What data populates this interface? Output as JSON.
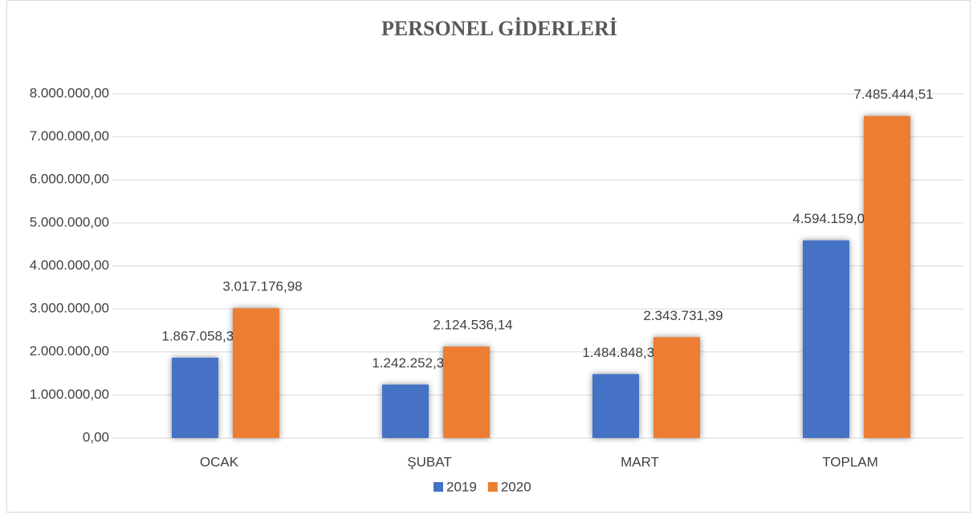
{
  "chart_data": {
    "type": "bar",
    "title": "PERSONEL GİDERLERİ",
    "categories": [
      "OCAK",
      "ŞUBAT",
      "MART",
      "TOPLAM"
    ],
    "series": [
      {
        "name": "2019",
        "color": "#4472c4",
        "values": [
          1867058.33,
          1242252.34,
          1484848.37,
          4594159.04
        ],
        "value_labels": [
          "1.867.058,33",
          "1.242.252,34",
          "1.484.848,37",
          "4.594.159,04"
        ]
      },
      {
        "name": "2020",
        "color": "#ed7d31",
        "values": [
          3017176.98,
          2124536.14,
          2343731.39,
          7485444.51
        ],
        "value_labels": [
          "3.017.176,98",
          "2.124.536,14",
          "2.343.731,39",
          "7.485.444,51"
        ]
      }
    ],
    "ylim": [
      0,
      8000000
    ],
    "yticks": [
      {
        "value": 0,
        "label": "0,00"
      },
      {
        "value": 1000000,
        "label": "1.000.000,00"
      },
      {
        "value": 2000000,
        "label": "2.000.000,00"
      },
      {
        "value": 3000000,
        "label": "3.000.000,00"
      },
      {
        "value": 4000000,
        "label": "4.000.000,00"
      },
      {
        "value": 5000000,
        "label": "5.000.000,00"
      },
      {
        "value": 6000000,
        "label": "6.000.000,00"
      },
      {
        "value": 7000000,
        "label": "7.000.000,00"
      },
      {
        "value": 8000000,
        "label": "8.000.000,00"
      }
    ],
    "grid": true,
    "legend": "bottom"
  }
}
